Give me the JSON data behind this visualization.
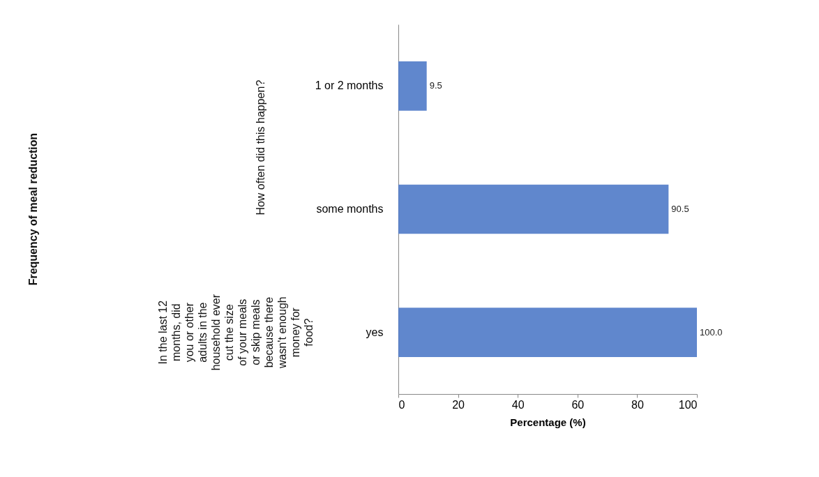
{
  "chart_data": {
    "type": "bar",
    "orientation": "horizontal",
    "xlabel": "Percentage (%)",
    "categories": [
      "1 or 2 months",
      "some months",
      "yes"
    ],
    "values": [
      9.5,
      90.5,
      100.0
    ],
    "value_labels": [
      "9.5",
      "90.5",
      "100.0"
    ],
    "color": "#4472c4",
    "xlim": [
      0,
      100
    ],
    "xticks": [
      0,
      20,
      40,
      60,
      80,
      100
    ],
    "annotations": [
      "How often did this happen?",
      "In the last 12 months, did you or other adults in the household ever cut the size of your meals or skip meals because there wasn't enough money for food?",
      "Frequency of meal reduction"
    ],
    "grid": false
  }
}
